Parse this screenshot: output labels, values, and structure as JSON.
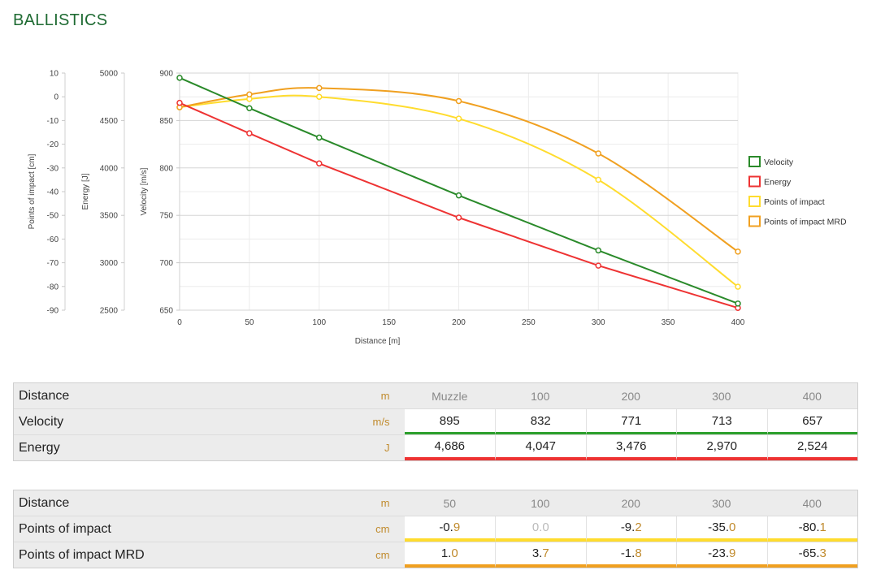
{
  "page": {
    "title": "BALLISTICS"
  },
  "chart_data": {
    "type": "line",
    "xlabel": "Distance [m]",
    "x_ticks": [
      0,
      50,
      100,
      150,
      200,
      250,
      300,
      350,
      400
    ],
    "xlim": [
      0,
      400
    ],
    "axes": {
      "poi": {
        "label": "Points of impact [cm]",
        "lim": [
          -90,
          10
        ],
        "ticks": [
          10,
          0,
          -10,
          -20,
          -30,
          -40,
          -50,
          -60,
          -70,
          -80,
          -90
        ]
      },
      "energy": {
        "label": "Energy [J]",
        "lim": [
          2500,
          5000
        ],
        "ticks": [
          5000,
          4500,
          4000,
          3500,
          3000,
          2500
        ]
      },
      "velocity": {
        "label": "Velocity [m/s]",
        "lim": [
          650,
          900
        ],
        "ticks": [
          900,
          850,
          800,
          750,
          700,
          650
        ]
      }
    },
    "grid": true,
    "legend_position": "right",
    "series": [
      {
        "name": "Velocity",
        "axis": "velocity",
        "color": "#2a8a2a",
        "x": [
          0,
          50,
          100,
          200,
          300,
          400
        ],
        "y": [
          895,
          863,
          832,
          771,
          713,
          657
        ]
      },
      {
        "name": "Energy",
        "axis": "energy",
        "color": "#ee3333",
        "x": [
          0,
          50,
          100,
          200,
          300,
          400
        ],
        "y": [
          4686,
          4365,
          4047,
          3476,
          2970,
          2524
        ]
      },
      {
        "name": "Points of impact",
        "axis": "poi",
        "color": "#ffdc2e",
        "x": [
          0,
          50,
          100,
          200,
          300,
          400
        ],
        "y": [
          -4.4,
          -0.9,
          0.0,
          -9.2,
          -35.0,
          -80.1
        ]
      },
      {
        "name": "Points of impact MRD",
        "axis": "poi",
        "color": "#f0a020",
        "x": [
          0,
          50,
          100,
          200,
          300,
          400
        ],
        "y": [
          -4.4,
          1.0,
          3.7,
          -1.8,
          -23.9,
          -65.3
        ]
      }
    ]
  },
  "table1": {
    "distance": {
      "label": "Distance",
      "unit": "m",
      "values": [
        "Muzzle",
        "100",
        "200",
        "300",
        "400"
      ]
    },
    "velocity": {
      "label": "Velocity",
      "unit": "m/s",
      "values": [
        "895",
        "832",
        "771",
        "713",
        "657"
      ]
    },
    "energy": {
      "label": "Energy",
      "unit": "J",
      "values": [
        "4,686",
        "4,047",
        "3,476",
        "2,970",
        "2,524"
      ]
    }
  },
  "table2": {
    "distance": {
      "label": "Distance",
      "unit": "m",
      "values": [
        "50",
        "100",
        "200",
        "300",
        "400"
      ]
    },
    "poi": {
      "label": "Points of impact",
      "unit": "cm",
      "values": [
        "-0.9",
        "0.0",
        "-9.2",
        "-35.0",
        "-80.1"
      ]
    },
    "mrd": {
      "label": "Points of impact MRD",
      "unit": "cm",
      "values": [
        "1.0",
        "3.7",
        "-1.8",
        "-23.9",
        "-65.3"
      ]
    }
  }
}
